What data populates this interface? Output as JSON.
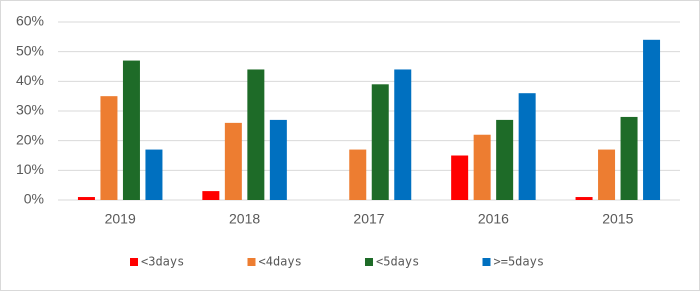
{
  "chart_data": {
    "type": "bar",
    "categories": [
      "2019",
      "2018",
      "2017",
      "2016",
      "2015"
    ],
    "series": [
      {
        "name": "<3days",
        "color": "#ff0000",
        "values": [
          1,
          3,
          0,
          15,
          1
        ]
      },
      {
        "name": "<4days",
        "color": "#ed7d31",
        "values": [
          35,
          26,
          17,
          22,
          17
        ]
      },
      {
        "name": "<5days",
        "color": "#1e6b28",
        "values": [
          47,
          44,
          39,
          27,
          28
        ]
      },
      {
        "name": ">=5days",
        "color": "#0070c0",
        "values": [
          17,
          27,
          44,
          36,
          54
        ]
      }
    ],
    "ylim": [
      0,
      60
    ],
    "yticks": [
      {
        "value": 0,
        "label": "0%"
      },
      {
        "value": 10,
        "label": "10%"
      },
      {
        "value": 20,
        "label": "20%"
      },
      {
        "value": 30,
        "label": "30%"
      },
      {
        "value": 40,
        "label": "40%"
      },
      {
        "value": 50,
        "label": "50%"
      },
      {
        "value": 60,
        "label": "60%"
      }
    ],
    "grid": true,
    "legend": "bottom"
  }
}
